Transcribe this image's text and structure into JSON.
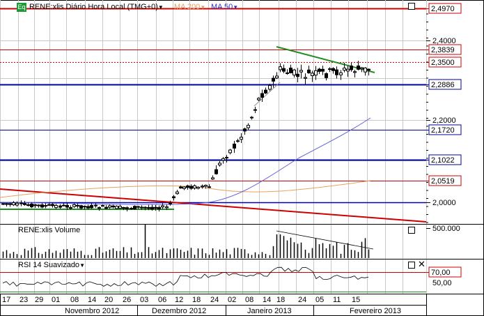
{
  "price_panel": {
    "symbol_badge": "Eq",
    "symbol_label": "RENE:xlis Diário Hora Local (TMG+0)",
    "ma200_label": "MA 200",
    "ma50_label": "MA 50",
    "price_labels": [
      "2,4970",
      "2,3839",
      "2,3500",
      "2,2886",
      "2,1720",
      "2,1022",
      "2,0519"
    ],
    "axis_ticks": [
      "2,4000",
      "2,2000",
      "2,0000"
    ]
  },
  "volume_panel": {
    "title": "RENE:xlis Volume",
    "axis_label": "500.000"
  },
  "rsi_panel": {
    "title": "RSI 14 Suavizado",
    "level_label": "70,00",
    "value_label": "50,00"
  },
  "x_axis": {
    "day_ticks": [
      "17",
      "23",
      "29",
      "01",
      "08",
      "14",
      "20",
      "26",
      "03",
      "06",
      "12",
      "18",
      "24",
      "02",
      "08",
      "14",
      "18",
      "24",
      "05",
      "11",
      "15"
    ],
    "month_labels": [
      "Novembro 2012",
      "Dezembro 2012",
      "Janeiro 2013",
      "Fevereiro 2013"
    ]
  },
  "colors": {
    "support": "#0000a0",
    "resistance": "#cc0000",
    "trend_green": "#228b22",
    "ma200": "#e8a060",
    "ma50": "#6060e0",
    "grid": "#c8c8c8"
  },
  "icons": [
    "dropdown-arrow-icon",
    "maximize-icon",
    "close-icon"
  ]
}
